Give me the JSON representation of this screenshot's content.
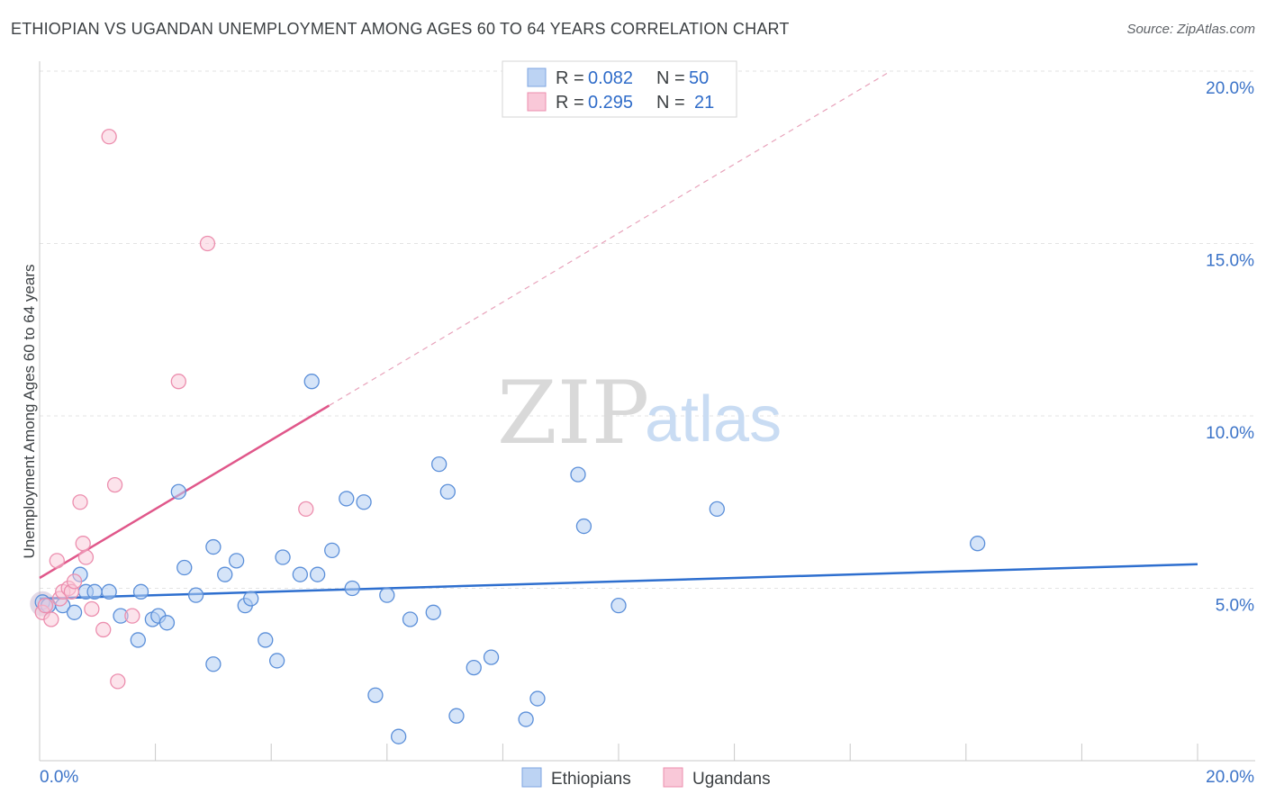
{
  "header": {
    "title": "ETHIOPIAN VS UGANDAN UNEMPLOYMENT AMONG AGES 60 TO 64 YEARS CORRELATION CHART",
    "source": "Source: ZipAtlas.com"
  },
  "watermark": {
    "zip": "ZIP",
    "atlas": "atlas"
  },
  "legend": {
    "rows": [
      {
        "r_label": "R = ",
        "r_value": "0.082",
        "n_label": "N = ",
        "n_value": "50"
      },
      {
        "r_label": "R = ",
        "r_value": "0.295",
        "n_label": "N = ",
        "n_value": "21"
      }
    ]
  },
  "chart_data": {
    "type": "scatter",
    "title": "ETHIOPIAN VS UGANDAN UNEMPLOYMENT AMONG AGES 60 TO 64 YEARS CORRELATION CHART",
    "xlabel": "",
    "ylabel": "Unemployment Among Ages 60 to 64 years",
    "xlim": [
      0,
      20
    ],
    "ylim": [
      0,
      20
    ],
    "x_tick_labels": [
      "0.0%",
      "20.0%"
    ],
    "y_ticks": [
      5,
      10,
      15,
      20
    ],
    "y_tick_labels": [
      "5.0%",
      "10.0%",
      "15.0%",
      "20.0%"
    ],
    "grid": true,
    "colors": {
      "ethiopians": "#5b8fd9",
      "ugandans": "#ec8eae",
      "eth_line": "#2e6fcf",
      "uga_line": "#e0578a"
    },
    "series": [
      {
        "name": "Ethiopians",
        "r": 0.082,
        "n": 50,
        "trend": {
          "x": [
            0,
            20
          ],
          "y": [
            4.7,
            5.7
          ],
          "style": "solid"
        },
        "points": [
          [
            0.05,
            4.6
          ],
          [
            0.15,
            4.5
          ],
          [
            0.4,
            4.5
          ],
          [
            0.6,
            4.3
          ],
          [
            0.7,
            5.4
          ],
          [
            0.8,
            4.9
          ],
          [
            0.95,
            4.9
          ],
          [
            1.2,
            4.9
          ],
          [
            1.4,
            4.2
          ],
          [
            1.7,
            3.5
          ],
          [
            1.75,
            4.9
          ],
          [
            1.95,
            4.1
          ],
          [
            2.05,
            4.2
          ],
          [
            2.2,
            4.0
          ],
          [
            2.4,
            7.8
          ],
          [
            2.5,
            5.6
          ],
          [
            2.7,
            4.8
          ],
          [
            3.0,
            2.8
          ],
          [
            3.0,
            6.2
          ],
          [
            3.2,
            5.4
          ],
          [
            3.4,
            5.8
          ],
          [
            3.55,
            4.5
          ],
          [
            3.65,
            4.7
          ],
          [
            3.9,
            3.5
          ],
          [
            4.1,
            2.9
          ],
          [
            4.2,
            5.9
          ],
          [
            4.5,
            5.4
          ],
          [
            4.7,
            11.0
          ],
          [
            4.8,
            5.4
          ],
          [
            5.05,
            6.1
          ],
          [
            5.3,
            7.6
          ],
          [
            5.4,
            5.0
          ],
          [
            5.6,
            7.5
          ],
          [
            5.8,
            1.9
          ],
          [
            6.0,
            4.8
          ],
          [
            6.2,
            0.7
          ],
          [
            6.4,
            4.1
          ],
          [
            6.8,
            4.3
          ],
          [
            6.9,
            8.6
          ],
          [
            7.05,
            7.8
          ],
          [
            7.2,
            1.3
          ],
          [
            7.5,
            2.7
          ],
          [
            7.8,
            3.0
          ],
          [
            8.4,
            1.2
          ],
          [
            8.6,
            1.8
          ],
          [
            9.3,
            8.3
          ],
          [
            9.4,
            6.8
          ],
          [
            10.0,
            4.5
          ],
          [
            11.7,
            7.3
          ],
          [
            16.2,
            6.3
          ]
        ]
      },
      {
        "name": "Ugandans",
        "r": 0.295,
        "n": 21,
        "trend": {
          "x": [
            0,
            5.0
          ],
          "y": [
            5.3,
            10.3
          ],
          "style": "solid",
          "extended": {
            "x": [
              5.0,
              14.7
            ],
            "y": [
              10.3,
              20.0
            ],
            "style": "dashed"
          }
        },
        "points": [
          [
            0.05,
            4.3
          ],
          [
            0.1,
            4.5
          ],
          [
            0.2,
            4.1
          ],
          [
            0.3,
            5.8
          ],
          [
            0.35,
            4.7
          ],
          [
            0.4,
            4.9
          ],
          [
            0.5,
            5.0
          ],
          [
            0.55,
            4.9
          ],
          [
            0.6,
            5.2
          ],
          [
            0.7,
            7.5
          ],
          [
            0.75,
            6.3
          ],
          [
            0.8,
            5.9
          ],
          [
            0.9,
            4.4
          ],
          [
            1.1,
            3.8
          ],
          [
            1.2,
            18.1
          ],
          [
            1.3,
            8.0
          ],
          [
            1.35,
            2.3
          ],
          [
            1.6,
            4.2
          ],
          [
            2.4,
            11.0
          ],
          [
            2.9,
            15.0
          ],
          [
            4.6,
            7.3
          ]
        ]
      }
    ]
  },
  "bottom_legend": {
    "items": [
      "Ethiopians",
      "Ugandans"
    ]
  }
}
